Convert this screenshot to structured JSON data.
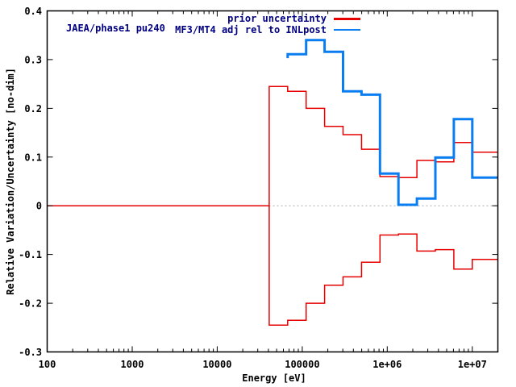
{
  "labels": {
    "dataset": "JAEA/phase1 pu240",
    "x_title": "Energy [eV]",
    "y_title": "Relative Variation/Uncertainty [no-dim]"
  },
  "legend": {
    "position": "top-right-inside",
    "entries": [
      {
        "label": "MF3/MT4 adj rel to INLpost",
        "color": "#0a7ef0",
        "line_width": 3
      },
      {
        "label": "prior uncertainty",
        "color": "#e60000",
        "line_width": 1.5
      }
    ]
  },
  "colors": {
    "background": "#ffffff",
    "axis": "#000000",
    "text_accent": "#000080",
    "zero_line": "#aaaaaa"
  },
  "chart_data": {
    "type": "line",
    "subtype": "step-histogram",
    "title": "",
    "xlabel": "Energy [eV]",
    "ylabel": "Relative Variation/Uncertainty [no-dim]",
    "x_scale": "log",
    "y_scale": "linear",
    "xlim": [
      100,
      20000000
    ],
    "ylim": [
      -0.3,
      0.4
    ],
    "grid": "dotted-zero-axis-only",
    "legend_position": "top-right-inside",
    "x_ticks": [
      {
        "value": 100,
        "label": "100"
      },
      {
        "value": 1000,
        "label": "1000"
      },
      {
        "value": 10000,
        "label": "10000"
      },
      {
        "value": 100000,
        "label": "100000"
      },
      {
        "value": 1000000,
        "label": "1e+06"
      },
      {
        "value": 10000000,
        "label": "1e+07"
      }
    ],
    "y_ticks": [
      {
        "value": 0.4,
        "label": "0.4"
      },
      {
        "value": 0.3,
        "label": "0.3"
      },
      {
        "value": 0.2,
        "label": "0.2"
      },
      {
        "value": 0.1,
        "label": "0.1"
      },
      {
        "value": 0,
        "label": "0"
      },
      {
        "value": -0.1,
        "label": "-0.1"
      },
      {
        "value": -0.2,
        "label": "-0.2"
      },
      {
        "value": -0.3,
        "label": "-0.3"
      }
    ],
    "series": [
      {
        "name": "prior uncertainty",
        "color": "#e60000",
        "line_width": 1.5,
        "type": "step-mirrored",
        "zero_from_eV": 100,
        "group_boundaries_eV": [
          40868,
          67380,
          111090,
          183160,
          301970,
          497870,
          820850,
          1353400,
          2231300,
          3678800,
          6065300,
          10000000,
          20000000
        ],
        "values": [
          0.245,
          0.235,
          0.2,
          0.163,
          0.146,
          0.116,
          0.06,
          0.058,
          0.093,
          0.09,
          0.13,
          0.11
        ]
      },
      {
        "name": "MF3/MT4 adj rel to INLpost",
        "color": "#0a7ef0",
        "line_width": 3,
        "type": "step",
        "lead_in_value": 0.303,
        "group_boundaries_eV": [
          67380,
          111090,
          183160,
          301970,
          497870,
          820850,
          1353400,
          2231300,
          3678800,
          6065300,
          10000000,
          20000000
        ],
        "values": [
          0.311,
          0.34,
          0.316,
          0.235,
          0.228,
          0.066,
          0.002,
          0.015,
          0.099,
          0.178,
          0.058
        ]
      }
    ]
  }
}
